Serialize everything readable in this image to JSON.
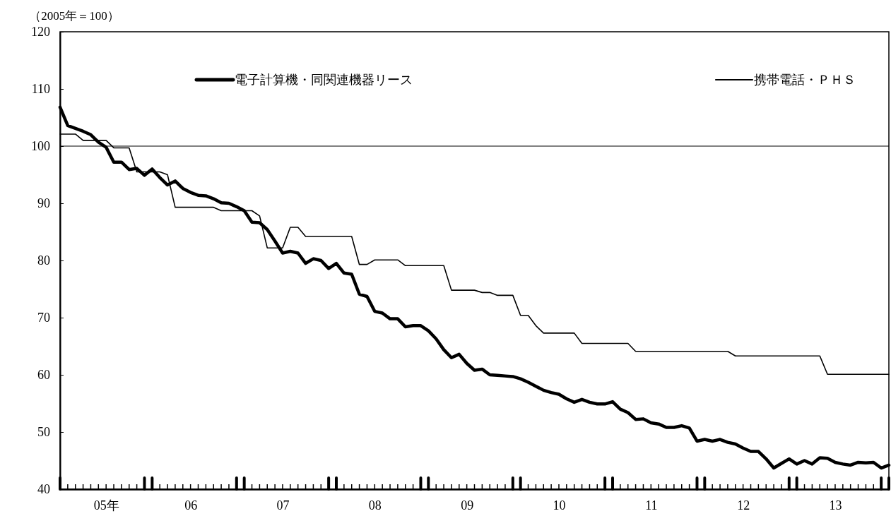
{
  "chart_data": {
    "type": "line",
    "ylabel": "（2005年＝100）",
    "categories": [
      null,
      null,
      null,
      null,
      null,
      null,
      "05年",
      null,
      null,
      null,
      null,
      null,
      null,
      null,
      null,
      null,
      null,
      "06",
      null,
      null,
      null,
      null,
      null,
      null,
      null,
      null,
      null,
      null,
      null,
      "07",
      null,
      null,
      null,
      null,
      null,
      null,
      null,
      null,
      null,
      null,
      null,
      "08",
      null,
      null,
      null,
      null,
      null,
      null,
      null,
      null,
      null,
      null,
      null,
      "09",
      null,
      null,
      null,
      null,
      null,
      null,
      null,
      null,
      null,
      null,
      null,
      "10",
      null,
      null,
      null,
      null,
      null,
      null,
      null,
      null,
      null,
      null,
      null,
      "11",
      null,
      null,
      null,
      null,
      null,
      null,
      null,
      null,
      null,
      null,
      null,
      "12",
      null,
      null,
      null,
      null,
      null,
      null,
      null,
      null,
      null,
      null,
      null,
      "13",
      null,
      null,
      null,
      null,
      null,
      null,
      null
    ],
    "ylim": [
      40,
      120
    ],
    "yticks": [
      40,
      50,
      60,
      70,
      80,
      90,
      100,
      110,
      120
    ],
    "legend": "top",
    "ref_lines": [
      {
        "axis": "y",
        "value": 100,
        "color": "#000000"
      }
    ],
    "series": [
      {
        "name": "電子計算機・同関連機器リース",
        "color": "#000000",
        "values": [
          106.8,
          103.6,
          103.1,
          102.6,
          102.0,
          100.7,
          99.8,
          97.2,
          97.2,
          95.9,
          96.1,
          94.9,
          96.0,
          94.5,
          93.2,
          93.9,
          92.6,
          91.9,
          91.4,
          91.3,
          90.8,
          90.1,
          90.0,
          89.4,
          88.7,
          86.7,
          86.6,
          85.4,
          83.4,
          81.3,
          81.6,
          81.3,
          79.5,
          80.3,
          80.0,
          78.6,
          79.5,
          77.8,
          77.6,
          74.1,
          73.7,
          71.1,
          70.8,
          69.8,
          69.8,
          68.4,
          68.6,
          68.6,
          67.7,
          66.3,
          64.4,
          63.0,
          63.6,
          62.0,
          60.8,
          61.0,
          60.0,
          59.9,
          59.8,
          59.7,
          59.3,
          58.7,
          58.0,
          57.3,
          56.9,
          56.6,
          55.8,
          55.2,
          55.7,
          55.2,
          54.9,
          54.9,
          55.3,
          54.0,
          53.4,
          52.2,
          52.3,
          51.6,
          51.4,
          50.8,
          50.8,
          51.1,
          50.7,
          48.4,
          48.7,
          48.4,
          48.7,
          48.2,
          47.9,
          47.2,
          46.6,
          46.6,
          45.3,
          43.7,
          44.5,
          45.3,
          44.4,
          45.0,
          44.4,
          45.5,
          45.4,
          44.7,
          44.4,
          44.2,
          44.7,
          44.6,
          44.7,
          43.7,
          44.2
        ]
      },
      {
        "name": "携帯電話・ＰＨＳ",
        "color": "#000000",
        "values": [
          102.1,
          102.1,
          102.1,
          101.0,
          101.0,
          101.0,
          101.0,
          99.7,
          99.7,
          99.7,
          95.5,
          95.5,
          95.5,
          95.5,
          95.0,
          89.3,
          89.3,
          89.3,
          89.3,
          89.3,
          89.3,
          88.7,
          88.7,
          88.7,
          88.7,
          88.7,
          87.8,
          82.2,
          82.2,
          82.2,
          85.8,
          85.8,
          84.2,
          84.2,
          84.2,
          84.2,
          84.2,
          84.2,
          84.2,
          79.3,
          79.3,
          80.1,
          80.1,
          80.1,
          80.1,
          79.1,
          79.1,
          79.1,
          79.1,
          79.1,
          79.1,
          74.8,
          74.8,
          74.8,
          74.8,
          74.4,
          74.4,
          73.9,
          73.9,
          73.9,
          70.4,
          70.4,
          68.6,
          67.3,
          67.3,
          67.3,
          67.3,
          67.3,
          65.5,
          65.5,
          65.5,
          65.5,
          65.5,
          65.5,
          65.5,
          64.1,
          64.1,
          64.1,
          64.1,
          64.1,
          64.1,
          64.1,
          64.1,
          64.1,
          64.1,
          64.1,
          64.1,
          64.1,
          63.3,
          63.3,
          63.3,
          63.3,
          63.3,
          63.3,
          63.3,
          63.3,
          63.3,
          63.3,
          63.3,
          63.3,
          60.1,
          60.1,
          60.1,
          60.1,
          60.1,
          60.1,
          60.1,
          60.1,
          60.1
        ]
      }
    ]
  }
}
